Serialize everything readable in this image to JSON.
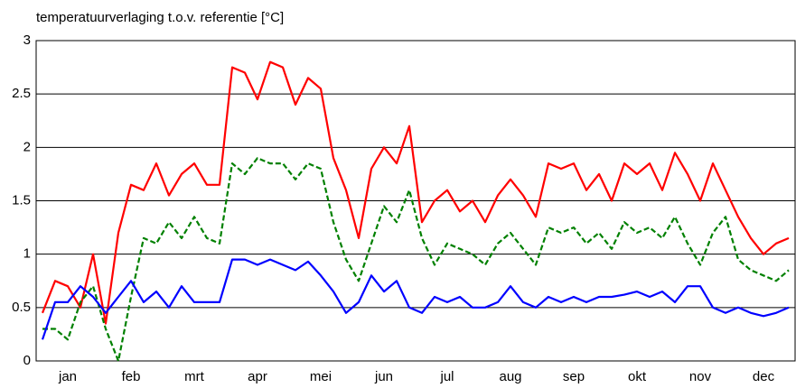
{
  "chart_data": {
    "type": "line",
    "title": "temperatuurverlaging t.o.v. referentie [°C]",
    "categories": [
      null,
      null,
      "jan",
      null,
      null,
      null,
      null,
      "feb",
      null,
      null,
      null,
      null,
      "mrt",
      null,
      null,
      null,
      null,
      "apr",
      null,
      null,
      null,
      null,
      "mei",
      null,
      null,
      null,
      null,
      "jun",
      null,
      null,
      null,
      null,
      "jul",
      null,
      null,
      null,
      null,
      "aug",
      null,
      null,
      null,
      null,
      "sep",
      null,
      null,
      null,
      null,
      "okt",
      null,
      null,
      null,
      null,
      "nov",
      null,
      null,
      null,
      null,
      "dec",
      null,
      null
    ],
    "series": [
      {
        "color": "#ff0000",
        "dashed": false,
        "values": [
          0.45,
          0.75,
          0.7,
          0.5,
          1.0,
          0.35,
          1.2,
          1.65,
          1.6,
          1.85,
          1.55,
          1.75,
          1.85,
          1.65,
          1.65,
          2.75,
          2.7,
          2.45,
          2.8,
          2.75,
          2.4,
          2.65,
          2.55,
          1.9,
          1.6,
          1.15,
          1.8,
          2.0,
          1.85,
          2.2,
          1.3,
          1.5,
          1.6,
          1.4,
          1.5,
          1.3,
          1.55,
          1.7,
          1.55,
          1.35,
          1.85,
          1.8,
          1.85,
          1.6,
          1.75,
          1.5,
          1.85,
          1.75,
          1.85,
          1.6,
          1.95,
          1.75,
          1.5,
          1.85,
          1.6,
          1.35,
          1.15,
          1.0,
          1.1,
          1.15
        ]
      },
      {
        "color": "#008000",
        "dashed": true,
        "values": [
          0.3,
          0.3,
          0.2,
          0.55,
          0.7,
          0.3,
          0.0,
          0.6,
          1.15,
          1.1,
          1.3,
          1.15,
          1.35,
          1.15,
          1.1,
          1.85,
          1.75,
          1.9,
          1.85,
          1.85,
          1.7,
          1.85,
          1.8,
          1.3,
          0.95,
          0.75,
          1.1,
          1.45,
          1.3,
          1.6,
          1.15,
          0.9,
          1.1,
          1.05,
          1.0,
          0.9,
          1.1,
          1.2,
          1.05,
          0.9,
          1.25,
          1.2,
          1.25,
          1.1,
          1.2,
          1.05,
          1.3,
          1.2,
          1.25,
          1.15,
          1.35,
          1.1,
          0.9,
          1.2,
          1.35,
          0.95,
          0.85,
          0.8,
          0.75,
          0.85
        ]
      },
      {
        "color": "#0000ff",
        "dashed": false,
        "values": [
          0.2,
          0.55,
          0.55,
          0.7,
          0.6,
          0.45,
          0.6,
          0.75,
          0.55,
          0.65,
          0.5,
          0.7,
          0.55,
          0.55,
          0.55,
          0.95,
          0.95,
          0.9,
          0.95,
          0.9,
          0.85,
          0.93,
          0.8,
          0.65,
          0.45,
          0.55,
          0.8,
          0.65,
          0.75,
          0.5,
          0.45,
          0.6,
          0.55,
          0.6,
          0.5,
          0.5,
          0.55,
          0.7,
          0.55,
          0.5,
          0.6,
          0.55,
          0.6,
          0.55,
          0.6,
          0.6,
          0.62,
          0.65,
          0.6,
          0.65,
          0.55,
          0.7,
          0.7,
          0.5,
          0.45,
          0.5,
          0.45,
          0.42,
          0.45,
          0.5
        ]
      }
    ],
    "ylim": [
      0,
      3
    ],
    "yticks": [
      0,
      0.5,
      1,
      1.5,
      2,
      2.5,
      3
    ],
    "grid": true
  }
}
